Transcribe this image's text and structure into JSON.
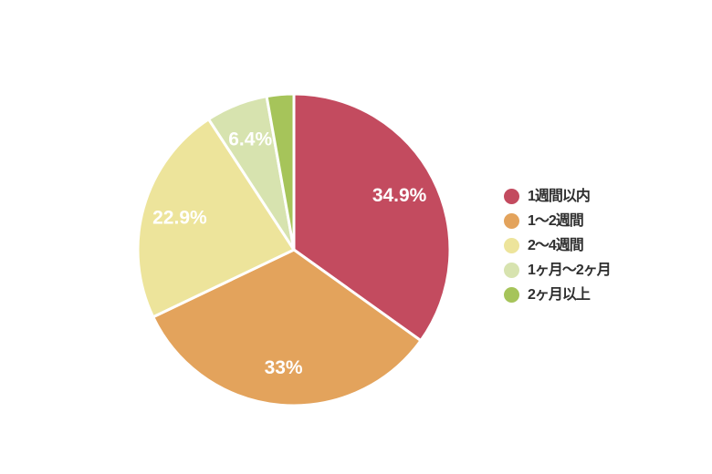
{
  "page": {
    "background_color": "#ffffff"
  },
  "chart_data": {
    "type": "pie",
    "title": "",
    "start_angle_deg": 0,
    "direction": "clockwise",
    "slice_border_color": "#ffffff",
    "label_color": "#ffffff",
    "legend_position": "right",
    "slices": [
      {
        "name": "1週間以内",
        "value": 34.9,
        "label": "34.9%",
        "color": "#C34B5F"
      },
      {
        "name": "1～2週間",
        "value": 33,
        "label": "33%",
        "color": "#E3A35C"
      },
      {
        "name": "2～4週間",
        "value": 22.9,
        "label": "22.9%",
        "color": "#EDE49B"
      },
      {
        "name": "1ヶ月～2ヶ月",
        "value": 6.4,
        "label": "6.4%",
        "color": "#D7E3AF"
      },
      {
        "name": "2ヶ月以上",
        "value": 2.8,
        "label": "",
        "color": "#A6C45A"
      }
    ]
  },
  "legend": {
    "text_color": "#2f2f2f",
    "items": [
      {
        "label": "1週間以内",
        "color": "#C34B5F"
      },
      {
        "label": "1～2週間",
        "color": "#E3A35C"
      },
      {
        "label": "2～4週間",
        "color": "#EDE49B"
      },
      {
        "label": "1ヶ月～2ヶ月",
        "color": "#D7E3AF"
      },
      {
        "label": "2ヶ月以上",
        "color": "#A6C45A"
      }
    ]
  }
}
